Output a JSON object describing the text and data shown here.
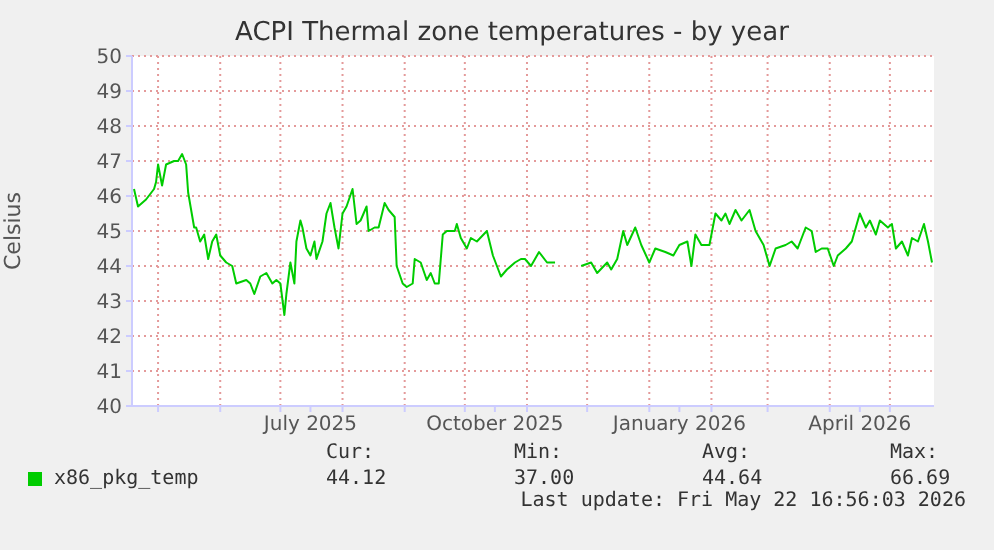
{
  "chart_data": {
    "type": "line",
    "title": "ACPI Thermal zone temperatures - by year",
    "ylabel": "Celsius",
    "x": [
      "2025-04-19",
      "2025-04-21",
      "2025-04-25",
      "2025-04-29",
      "2025-04-30",
      "2025-05-01",
      "2025-05-03",
      "2025-05-05",
      "2025-05-09",
      "2025-05-11",
      "2025-05-13",
      "2025-05-15",
      "2025-05-16",
      "2025-05-19",
      "2025-05-20",
      "2025-05-22",
      "2025-05-24",
      "2025-05-26",
      "2025-05-28",
      "2025-05-30",
      "2025-06-01",
      "2025-06-04",
      "2025-06-07",
      "2025-06-09",
      "2025-06-14",
      "2025-06-16",
      "2025-06-18",
      "2025-06-21",
      "2025-06-24",
      "2025-06-27",
      "2025-06-29",
      "2025-07-01",
      "2025-07-03",
      "2025-07-04",
      "2025-07-06",
      "2025-07-08",
      "2025-07-09",
      "2025-07-11",
      "2025-07-12",
      "2025-07-14",
      "2025-07-16",
      "2025-07-18",
      "2025-07-19",
      "2025-07-22",
      "2025-07-24",
      "2025-07-26",
      "2025-07-28",
      "2025-07-30",
      "2025-08-01",
      "2025-08-03",
      "2025-08-06",
      "2025-08-08",
      "2025-08-10",
      "2025-08-13",
      "2025-08-14",
      "2025-08-17",
      "2025-08-19",
      "2025-08-22",
      "2025-08-24",
      "2025-08-27",
      "2025-08-28",
      "2025-08-31",
      "2025-09-02",
      "2025-09-05",
      "2025-09-06",
      "2025-09-09",
      "2025-09-12",
      "2025-09-14",
      "2025-09-16",
      "2025-09-18",
      "2025-09-20",
      "2025-09-22",
      "2025-09-26",
      "2025-09-27",
      "2025-09-29",
      "2025-10-02",
      "2025-10-04",
      "2025-10-07",
      "2025-10-12",
      "2025-10-15",
      "2025-10-19",
      "2025-10-22",
      "2025-10-26",
      "2025-10-29",
      "2025-10-31",
      "2025-11-03",
      "2025-11-07",
      "2025-11-11",
      "2025-11-15",
      "2025-11-25",
      "2025-11-28",
      "2025-12-03",
      "2025-12-06",
      "2025-12-11",
      "2025-12-13",
      "2025-12-16",
      "2025-12-19",
      "2025-12-21",
      "2025-12-25",
      "2025-12-28",
      "2026-01-01",
      "2026-01-04",
      "2026-01-09",
      "2026-01-13",
      "2026-01-16",
      "2026-01-20",
      "2026-01-22",
      "2026-01-24",
      "2026-01-27",
      "2026-01-31",
      "2026-02-03",
      "2026-02-06",
      "2026-02-08",
      "2026-02-10",
      "2026-02-13",
      "2026-02-16",
      "2026-02-20",
      "2026-02-23",
      "2026-02-27",
      "2026-03-02",
      "2026-03-05",
      "2026-03-10",
      "2026-03-13",
      "2026-03-16",
      "2026-03-20",
      "2026-03-23",
      "2026-03-25",
      "2026-03-28",
      "2026-03-31",
      "2026-04-03",
      "2026-04-05",
      "2026-04-09",
      "2026-04-12",
      "2026-04-14",
      "2026-04-16",
      "2026-04-19",
      "2026-04-21",
      "2026-04-24",
      "2026-04-26",
      "2026-04-30",
      "2026-05-02",
      "2026-05-04",
      "2026-05-07",
      "2026-05-10",
      "2026-05-12",
      "2026-05-15",
      "2026-05-18",
      "2026-05-20",
      "2026-05-22"
    ],
    "series": [
      {
        "name": "x86_pkg_temp",
        "color": "#00cc00",
        "values": [
          46.2,
          45.7,
          45.9,
          46.2,
          46.4,
          46.9,
          46.3,
          46.9,
          47.0,
          47.0,
          47.2,
          46.9,
          46.1,
          45.1,
          45.1,
          44.7,
          44.9,
          44.2,
          44.7,
          44.9,
          44.3,
          44.1,
          44.0,
          43.5,
          43.6,
          43.5,
          43.2,
          43.7,
          43.8,
          43.5,
          43.6,
          43.5,
          42.6,
          43.2,
          44.1,
          43.5,
          44.7,
          45.3,
          45.1,
          44.5,
          44.3,
          44.7,
          44.2,
          44.7,
          45.5,
          45.8,
          45.1,
          44.5,
          45.5,
          45.7,
          46.2,
          45.2,
          45.3,
          45.7,
          45.0,
          45.1,
          45.1,
          45.8,
          45.6,
          45.4,
          44.0,
          43.5,
          43.4,
          43.5,
          44.2,
          44.1,
          43.6,
          43.8,
          43.5,
          43.5,
          44.9,
          45.0,
          45.0,
          45.2,
          44.8,
          44.5,
          44.8,
          44.7,
          45.0,
          44.3,
          43.7,
          43.9,
          44.1,
          44.2,
          44.2,
          44.0,
          44.4,
          44.1,
          44.1,
          null,
          44.0,
          44.1,
          43.8,
          44.1,
          43.9,
          44.2,
          45.0,
          44.6,
          45.1,
          44.6,
          44.1,
          44.5,
          44.4,
          44.3,
          44.6,
          44.7,
          44.0,
          44.9,
          44.6,
          44.6,
          45.5,
          45.3,
          45.5,
          45.2,
          45.6,
          45.3,
          45.6,
          45.0,
          44.6,
          44.0,
          44.5,
          44.6,
          44.7,
          44.5,
          45.1,
          45.0,
          44.4,
          44.5,
          44.5,
          44.0,
          44.3,
          44.5,
          44.7,
          45.1,
          45.5,
          45.1,
          45.3,
          44.9,
          45.3,
          45.1,
          45.2,
          44.5,
          44.7,
          44.3,
          44.8,
          44.7,
          45.2,
          44.7,
          44.1
        ]
      }
    ],
    "xlim": [
      "2025-04-18",
      "2026-05-23"
    ],
    "xticks": [
      {
        "value": "2025-05-01",
        "label": null
      },
      {
        "value": "2025-06-01",
        "label": null
      },
      {
        "value": "2025-07-01",
        "label": null
      },
      {
        "value": "2025-07-16",
        "label": "July 2025"
      },
      {
        "value": "2025-08-01",
        "label": null
      },
      {
        "value": "2025-09-01",
        "label": null
      },
      {
        "value": "2025-10-01",
        "label": null
      },
      {
        "value": "2025-10-16",
        "label": "October 2025"
      },
      {
        "value": "2025-11-01",
        "label": null
      },
      {
        "value": "2025-12-01",
        "label": null
      },
      {
        "value": "2026-01-01",
        "label": null
      },
      {
        "value": "2026-01-16",
        "label": "January 2026"
      },
      {
        "value": "2026-02-01",
        "label": null
      },
      {
        "value": "2026-03-01",
        "label": null
      },
      {
        "value": "2026-04-01",
        "label": null
      },
      {
        "value": "2026-04-16",
        "label": "April 2026"
      },
      {
        "value": "2026-05-01",
        "label": null
      }
    ],
    "ylim": [
      40,
      50
    ],
    "yticks": [
      40,
      41,
      42,
      43,
      44,
      45,
      46,
      47,
      48,
      49,
      50
    ],
    "grid": true,
    "legend": "bottom",
    "annotations": [
      "Cur:",
      "Min:",
      "Avg:",
      "Max:",
      "44.12",
      "37.00",
      "44.64",
      "66.69",
      "Last update: Fri May 22 16:56:03 2026"
    ]
  }
}
